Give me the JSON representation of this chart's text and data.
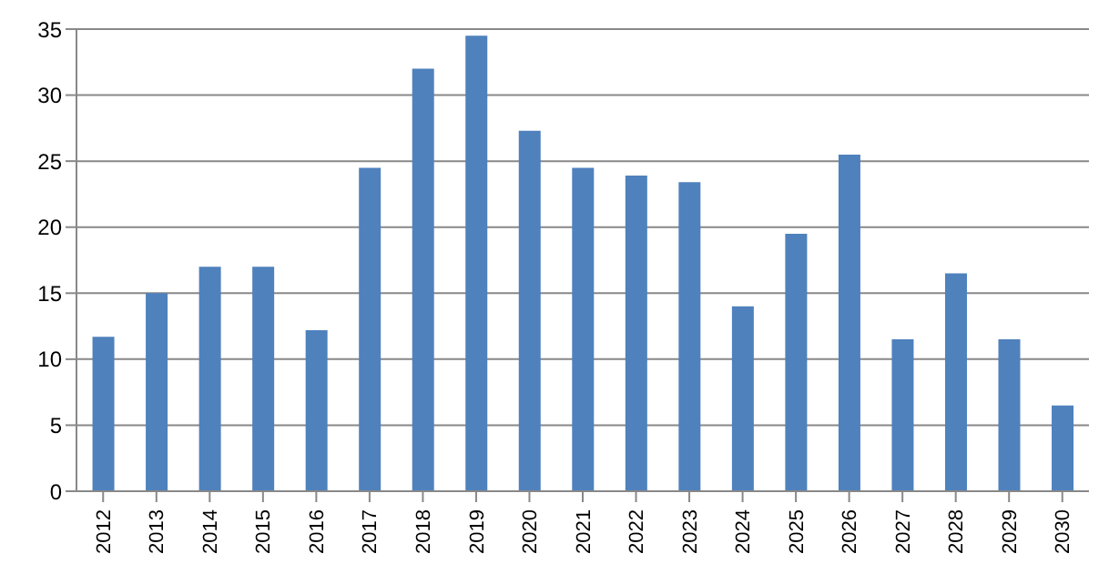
{
  "chart_data": {
    "type": "bar",
    "categories": [
      "2012",
      "2013",
      "2014",
      "2015",
      "2016",
      "2017",
      "2018",
      "2019",
      "2020",
      "2021",
      "2022",
      "2023",
      "2024",
      "2025",
      "2026",
      "2027",
      "2028",
      "2029",
      "2030"
    ],
    "values": [
      11.7,
      15,
      17,
      17,
      12.2,
      24.5,
      32,
      34.5,
      27.3,
      24.5,
      23.9,
      23.4,
      14,
      19.5,
      25.5,
      11.5,
      16.5,
      11.5,
      6.5
    ],
    "color": "#4f81bd",
    "ylim": [
      0,
      35
    ],
    "yticks": [
      0,
      5,
      10,
      15,
      20,
      25,
      30,
      35
    ],
    "grid": "y",
    "legend": false
  }
}
